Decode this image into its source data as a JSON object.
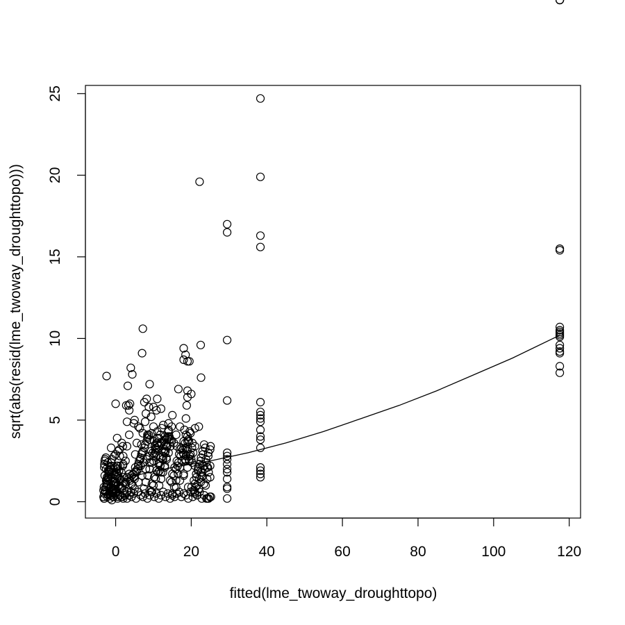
{
  "chart_data": {
    "type": "scatter",
    "title": "",
    "xlabel": "fitted(lme_twoway_droughttopo)",
    "ylabel": "sqrt(abs(resid(lme_twoway_droughttopo)))",
    "xlim": [
      -8,
      123
    ],
    "ylim": [
      -1,
      25.5
    ],
    "x_ticks": [
      0,
      20,
      40,
      60,
      80,
      100,
      120
    ],
    "y_ticks": [
      0,
      5,
      10,
      15,
      20,
      25
    ],
    "grid": false,
    "legend": "none",
    "marker": "open-circle",
    "points_x": [
      -3.2,
      -3.0,
      -2.8,
      -2.6,
      -2.4,
      -2.2,
      -2.0,
      -1.8,
      -1.6,
      -1.4,
      -1.2,
      -1.0,
      -0.8,
      -0.6,
      -0.4,
      -0.2,
      0.0,
      0.2,
      0.4,
      0.6,
      -3.1,
      -2.7,
      -2.3,
      -1.9,
      -1.5,
      -1.1,
      -0.7,
      -0.3,
      0.1,
      0.5,
      0.9,
      1.3,
      1.7,
      2.1,
      -2.9,
      -2.5,
      -2.1,
      -1.7,
      -1.3,
      -0.9,
      -0.5,
      -0.1,
      0.3,
      0.7,
      1.1,
      1.5,
      1.9,
      2.3,
      2.7,
      3.1,
      -3.0,
      -2.0,
      -1.0,
      0.0,
      1.0,
      2.0,
      3.0,
      -2.4,
      -1.4,
      -0.4,
      0.6,
      1.6,
      2.6,
      3.6,
      4.0,
      4.5,
      5.0,
      5.5,
      6.0,
      6.5,
      7.0,
      7.5,
      8.0,
      8.5,
      9.0,
      9.5,
      10.0,
      10.5,
      11.0,
      11.5,
      12.0,
      12.5,
      13.0,
      13.5,
      14.0,
      14.5,
      15.0,
      15.5,
      16.0,
      16.5,
      17.0,
      17.5,
      18.0,
      18.5,
      19.0,
      4.2,
      4.8,
      5.4,
      6.0,
      6.6,
      7.2,
      7.8,
      8.4,
      9.0,
      9.6,
      10.2,
      10.8,
      11.4,
      12.0,
      12.6,
      13.2,
      13.8,
      14.4,
      15.0,
      15.6,
      16.2,
      16.8,
      17.4,
      18.0,
      18.6,
      19.2,
      3.8,
      4.6,
      5.2,
      6.2,
      6.8,
      7.6,
      8.2,
      8.8,
      9.4,
      10.0,
      10.6,
      11.2,
      11.8,
      12.4,
      13.0,
      13.6,
      14.2,
      14.8,
      15.4,
      16.0,
      16.6,
      17.2,
      17.8,
      18.4,
      19.0,
      5.0,
      6.0,
      7.0,
      8.0,
      9.0,
      10.0,
      11.0,
      12.0,
      13.0,
      14.0,
      15.0,
      16.0,
      17.0,
      18.0,
      19.0,
      19.5,
      19.8,
      20.2,
      20.6,
      21.0,
      21.4,
      21.8,
      22.2,
      22.6,
      23.0,
      23.4,
      23.8,
      24.2,
      24.6,
      25.0,
      20.0,
      20.5,
      21.0,
      21.5,
      22.0,
      22.5,
      23.0,
      23.5,
      24.0,
      24.5,
      25.0,
      20.3,
      20.9,
      21.5,
      22.1,
      22.7,
      23.3,
      23.9,
      24.5,
      25.1,
      20.1,
      20.7,
      21.3,
      21.9,
      22.5,
      23.1,
      23.7,
      24.3,
      24.9,
      -2.0,
      -1.5,
      -1.0,
      -0.5,
      0.0,
      0.5,
      1.0,
      1.5,
      2.0,
      2.5,
      3.0,
      1.8,
      2.4,
      3.0,
      3.6,
      4.2,
      4.8,
      5.4,
      6.0,
      6.6,
      7.2,
      7.8,
      8.4,
      9.0,
      9.6,
      10.2,
      10.8,
      11.4,
      12.0,
      12.6,
      13.2,
      13.8,
      14.4,
      15.0,
      15.6,
      16.2,
      16.8,
      17.4,
      18.0,
      18.6,
      19.2,
      19.8,
      20.4,
      21.0,
      21.6,
      22.2,
      22.8,
      23.4,
      24.0,
      24.6,
      25.2,
      -3.0,
      -2.2,
      -1.4,
      -0.6,
      0.2,
      1.0,
      1.8,
      2.6,
      3.4,
      4.2,
      5.0,
      5.8,
      6.6,
      7.4,
      8.2,
      9.0,
      9.8,
      10.6,
      11.4,
      12.2,
      13.0,
      13.8,
      14.6,
      15.4,
      16.2,
      17.0,
      17.8,
      18.6,
      19.4,
      20.2,
      21.0,
      21.8,
      22.6,
      23.4,
      24.2,
      25.0,
      -2.6,
      -1.2,
      0.4,
      2.0,
      3.6,
      5.2,
      6.8,
      8.4,
      10.0,
      11.6,
      13.2,
      14.8,
      16.4,
      18.0,
      19.6,
      21.2,
      22.8,
      24.4,
      -3.2,
      -2.5,
      -1.8,
      -1.0,
      -0.2,
      0.6,
      1.4,
      2.2,
      -3.0,
      -2.4,
      -1.8,
      -1.2,
      -0.6,
      0.0,
      0.6,
      1.2,
      -2.8,
      -2.0,
      -1.2,
      -0.4,
      0.4,
      1.2,
      2.0,
      -3.1,
      -2.3,
      -1.5,
      -0.7,
      0.1,
      0.9,
      -2.9,
      -2.1,
      -1.3,
      -0.5,
      0.3,
      1.1,
      1.9,
      9.0,
      9.5,
      10.0,
      10.5,
      11.0,
      11.5,
      12.0,
      12.5,
      13.0,
      13.5,
      14.0,
      10.2,
      11.0,
      11.8,
      12.6,
      13.4,
      10.6,
      11.4,
      12.2,
      13.0,
      9.4,
      10.2,
      11.0,
      11.8,
      12.6,
      13.4,
      14.2,
      18.2,
      18.6,
      19.0,
      19.4,
      19.8,
      18.4,
      18.8,
      19.2,
      19.6,
      18.0,
      18.5,
      19.0,
      19.5,
      -2.4,
      0.0,
      2.8,
      3.6,
      3.8,
      5.0,
      6.0,
      3.2,
      4.4,
      7.0,
      7.6,
      8.2,
      8.8,
      9.4,
      4.8,
      5.6,
      6.4,
      7.2,
      8.0,
      3.0,
      3.4,
      4.0,
      9.0,
      10.0,
      11.0,
      12.0,
      14.0,
      15.0,
      16.0,
      17.0,
      18.0,
      19.0,
      20.0,
      21.0,
      22.0,
      22.5,
      22.2,
      22.6,
      16.6,
      18.8,
      19.0,
      18.6,
      10.8,
      7.8,
      7.2,
      8.4,
      14.8,
      11.0,
      10.4,
      29.5,
      29.5,
      29.5,
      29.5,
      29.5,
      29.5,
      29.5,
      29.5,
      29.5,
      29.5,
      29.5,
      29.5,
      29.5,
      29.5,
      38.3,
      38.3,
      38.3,
      38.3,
      38.3,
      38.3,
      38.3,
      38.3,
      38.3,
      38.3,
      38.3,
      38.3,
      38.3,
      38.3,
      38.3,
      38.3,
      38.3,
      117.5,
      117.5,
      117.5,
      117.5,
      117.5,
      117.5,
      117.5,
      117.5,
      117.5,
      117.5,
      117.5,
      117.5,
      117.5,
      117.5,
      117.5,
      117.5,
      117.5,
      117.5
    ],
    "points_y": [
      0.3,
      0.5,
      0.7,
      0.9,
      1.1,
      1.3,
      1.5,
      1.7,
      1.9,
      2.1,
      0.4,
      0.6,
      0.8,
      1.0,
      1.2,
      1.4,
      1.6,
      1.8,
      2.0,
      2.2,
      0.2,
      0.6,
      1.0,
      1.4,
      1.8,
      2.2,
      0.3,
      0.7,
      1.1,
      1.5,
      1.9,
      0.4,
      0.8,
      1.2,
      1.6,
      2.0,
      2.4,
      0.5,
      0.9,
      1.3,
      1.7,
      2.1,
      0.6,
      1.0,
      1.4,
      1.8,
      2.2,
      0.7,
      1.1,
      1.5,
      2.3,
      1.9,
      2.6,
      2.9,
      3.2,
      2.8,
      3.4,
      1.2,
      2.0,
      2.8,
      3.1,
      3.6,
      2.5,
      4.1,
      0.6,
      1.0,
      1.4,
      1.8,
      2.2,
      2.6,
      3.0,
      0.8,
      1.2,
      1.6,
      2.0,
      2.4,
      2.8,
      3.2,
      3.6,
      1.0,
      1.4,
      1.8,
      2.2,
      2.6,
      3.0,
      3.4,
      0.5,
      0.9,
      1.3,
      1.7,
      2.1,
      2.5,
      2.9,
      3.3,
      3.7,
      1.1,
      1.5,
      1.9,
      2.3,
      2.7,
      3.1,
      3.5,
      3.9,
      0.7,
      1.1,
      1.5,
      1.9,
      2.3,
      2.7,
      3.1,
      3.5,
      3.9,
      1.3,
      1.7,
      2.1,
      2.5,
      2.9,
      3.3,
      3.7,
      4.1,
      0.9,
      1.3,
      1.7,
      2.1,
      2.5,
      2.9,
      3.3,
      3.7,
      4.1,
      0.6,
      1.0,
      1.4,
      1.8,
      2.2,
      2.6,
      3.0,
      3.4,
      3.8,
      1.2,
      1.6,
      2.0,
      2.4,
      2.8,
      3.2,
      3.6,
      4.0,
      0.8,
      1.2,
      1.6,
      2.0,
      2.4,
      2.8,
      3.2,
      3.6,
      4.0,
      4.3,
      0.5,
      0.9,
      1.3,
      1.7,
      2.1,
      2.5,
      2.9,
      3.3,
      0.7,
      1.1,
      1.5,
      1.9,
      2.3,
      2.7,
      3.1,
      3.5,
      1.0,
      1.4,
      1.8,
      2.2,
      2.6,
      3.0,
      3.4,
      0.4,
      0.8,
      1.2,
      1.6,
      2.0,
      2.4,
      2.8,
      3.2,
      3.6,
      0.6,
      1.0,
      1.4,
      1.8,
      2.2,
      2.6,
      3.0,
      3.4,
      0.9,
      1.3,
      1.7,
      2.1,
      2.5,
      2.9,
      3.3,
      0.2,
      0.3,
      0.4,
      0.2,
      0.1,
      0.3,
      0.5,
      0.2,
      0.4,
      0.3,
      0.2,
      0.4,
      0.6,
      0.3,
      0.5,
      0.2,
      0.4,
      0.3,
      0.5,
      0.2,
      0.6,
      0.4,
      0.3,
      0.5,
      0.2,
      0.4,
      0.6,
      0.3,
      0.5,
      0.2,
      0.4,
      0.6,
      0.3,
      0.5,
      0.2,
      0.4,
      0.3,
      0.5,
      0.6,
      0.3,
      0.5,
      0.4,
      0.2,
      0.6,
      0.3,
      0.5,
      0.4,
      0.6,
      0.2,
      0.4,
      0.2,
      0.2,
      0.3,
      0.2,
      0.3,
      0.4,
      0.5,
      0.6,
      0.8,
      1.0,
      1.2,
      1.4,
      1.6,
      1.8,
      2.0,
      2.2,
      2.4,
      2.6,
      2.8,
      3.0,
      3.2,
      3.4,
      3.6,
      3.8,
      4.0,
      3.8,
      3.6,
      3.4,
      3.2,
      3.0,
      2.8,
      2.6,
      2.4,
      2.2,
      2.0,
      1.8,
      1.1,
      2.1,
      1.5,
      2.7,
      3.3,
      3.9,
      2.3,
      1.7,
      2.9,
      3.5,
      4.1,
      2.5,
      1.9,
      3.1,
      3.7,
      2.2,
      1.6,
      2.8,
      0.9,
      1.5,
      2.1,
      0.7,
      1.3,
      1.9,
      0.5,
      1.1,
      0.3,
      0.9,
      1.5,
      2.1,
      1.2,
      1.8,
      2.4,
      0.6,
      1.0,
      1.6,
      2.2,
      2.6,
      1.4,
      2.0,
      0.8,
      1.7,
      1.3,
      2.3,
      0.9,
      1.5,
      0.5,
      0.7,
      1.1,
      1.9,
      2.5,
      1.3,
      0.9,
      1.7,
      2.2,
      2.8,
      3.4,
      3.8,
      4.2,
      4.6,
      3.0,
      3.6,
      2.4,
      1.8,
      2.6,
      3.2,
      3.8,
      4.4,
      2.9,
      3.5,
      4.1,
      4.7,
      2.7,
      3.3,
      3.9,
      4.5,
      2.1,
      3.1,
      3.7,
      4.3,
      2.2,
      2.8,
      3.4,
      4.0,
      4.4,
      2.5,
      3.1,
      3.7,
      4.2,
      2.6,
      3.2,
      3.8,
      4.3,
      9.4,
      9.0,
      6.8,
      8.6,
      7.7,
      6.0,
      5.9,
      5.6,
      6.0,
      5.0,
      4.6,
      7.1,
      7.8,
      9.1,
      6.1,
      6.3,
      5.8,
      5.2,
      4.8,
      3.6,
      4.5,
      4.2,
      5.4,
      4.9,
      5.9,
      8.2,
      7.2,
      5.8,
      6.3,
      5.7,
      4.8,
      5.3,
      4.1,
      4.6,
      8.7,
      8.6,
      6.6,
      4.5,
      4.6,
      9.6,
      19.6,
      7.6,
      6.9,
      5.9,
      6.4,
      5.1,
      5.6,
      4.9,
      10.6,
      4.0,
      4.6,
      3.9,
      3.4,
      3.0,
      2.8,
      2.6,
      2.3,
      2.0,
      1.8,
      1.4,
      0.9,
      0.8,
      0.2,
      17.0,
      16.5,
      9.9,
      6.2,
      6.1,
      5.5,
      5.3,
      5.1,
      4.9,
      4.4,
      4.0,
      3.8,
      3.3,
      2.1,
      1.9,
      1.5,
      1.7,
      24.7,
      19.9,
      16.3,
      15.6,
      15.5,
      15.4,
      10.7,
      10.5,
      10.4,
      10.3,
      10.1,
      9.6,
      9.4,
      9.2,
      9.1,
      8.3,
      7.9,
      10.2
    ],
    "fit_curve_x": [
      -3.5,
      5,
      15,
      25,
      35,
      45,
      55,
      65,
      75,
      85,
      95,
      105,
      117.5
    ],
    "fit_curve_y": [
      0.6,
      1.6,
      2.1,
      2.5,
      3.0,
      3.6,
      4.3,
      5.1,
      5.9,
      6.8,
      7.8,
      8.8,
      10.2
    ]
  }
}
